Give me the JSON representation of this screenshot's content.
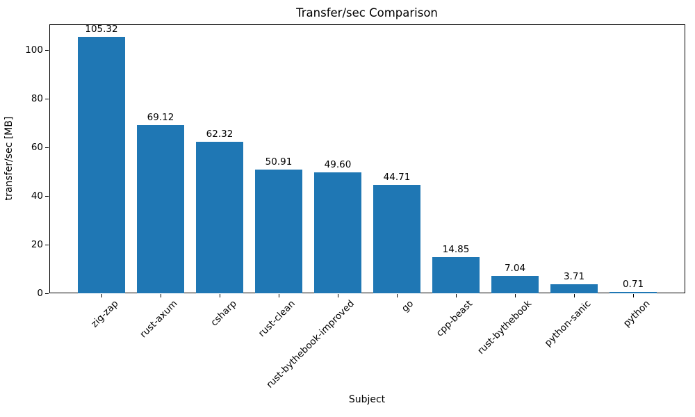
{
  "chart_data": {
    "type": "bar",
    "title": "Transfer/sec Comparison",
    "xlabel": "Subject",
    "ylabel": "transfer/sec [MB]",
    "categories": [
      "zig-zap",
      "rust-axum",
      "csharp",
      "rust-clean",
      "rust-bythebook-improved",
      "go",
      "cpp-beast",
      "rust-bythebook",
      "python-sanic",
      "python"
    ],
    "values": [
      105.32,
      69.12,
      62.32,
      50.91,
      49.6,
      44.71,
      14.85,
      7.04,
      3.71,
      0.71
    ],
    "value_labels": [
      "105.32",
      "69.12",
      "62.32",
      "50.91",
      "49.60",
      "44.71",
      "14.85",
      "7.04",
      "3.71",
      "0.71"
    ],
    "yticks": [
      0,
      20,
      40,
      60,
      80,
      100
    ],
    "ylim": [
      0,
      110.59
    ],
    "bar_color": "#1f77b4",
    "axis_color": "#000000",
    "grid": false,
    "legend_position": "none",
    "x_tick_rotation_deg": 45
  }
}
